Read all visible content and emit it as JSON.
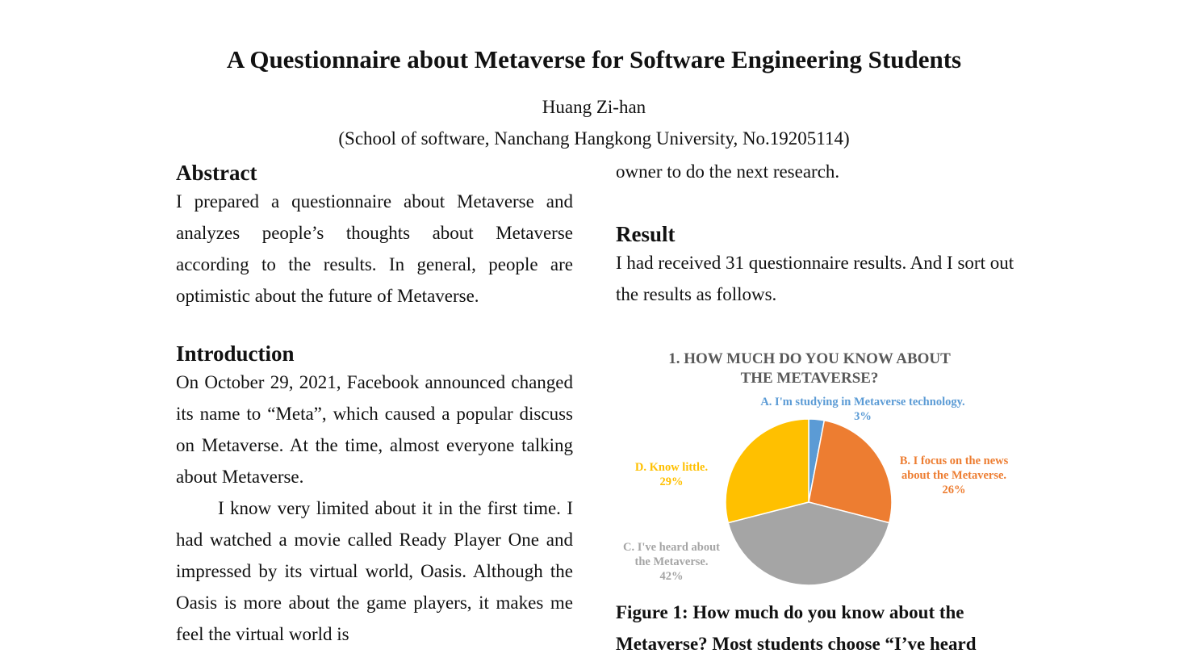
{
  "paper": {
    "title": "A Questionnaire about Metaverse for Software Engineering Students",
    "author": "Huang Zi-han",
    "affiliation": "(School of software, Nanchang Hangkong University, No.19205114)"
  },
  "abstract": {
    "heading": "Abstract",
    "text": "I prepared a questionnaire about Metaverse and analyzes people’s thoughts about Metaverse according to the results. In general, people are optimistic about the future of Metaverse."
  },
  "introduction": {
    "heading": "Introduction",
    "para1": "On October 29, 2021, Facebook announced changed its name to “Meta”, which caused a popular discuss on Metaverse. At the time, almost everyone talking about Metaverse.",
    "para2": "I know very limited about it in the first time. I had watched a movie called Ready Player One and impressed by its virtual world, Oasis. Although the Oasis is more about the game players, it makes me feel the virtual world is"
  },
  "right_column": {
    "continuation": "owner to do the next research.",
    "result_heading": "Result",
    "result_text": "I had received 31 questionnaire results. And I sort out the results as follows."
  },
  "chart_data": {
    "type": "pie",
    "title_line1": "1. HOW MUCH DO YOU KNOW ABOUT",
    "title_line2": "THE METAVERSE?",
    "slices": [
      {
        "label_line1": "A. I'm studying in Metaverse technology.",
        "label_line2": "",
        "value": 3,
        "value_label": "3%",
        "color": "#5b9bd5"
      },
      {
        "label_line1": "B. I focus on the news",
        "label_line2": "about the Metaverse.",
        "value": 26,
        "value_label": "26%",
        "color": "#ed7d31"
      },
      {
        "label_line1": "C. I've heard about",
        "label_line2": "the Metaverse.",
        "value": 42,
        "value_label": "42%",
        "color": "#a5a5a5"
      },
      {
        "label_line1": "D. Know little.",
        "label_line2": "",
        "value": 29,
        "value_label": "29%",
        "color": "#ffc000"
      }
    ]
  },
  "figure": {
    "caption": "Figure 1: How much do you know about the Metaverse? Most students choose “I’ve heard"
  }
}
